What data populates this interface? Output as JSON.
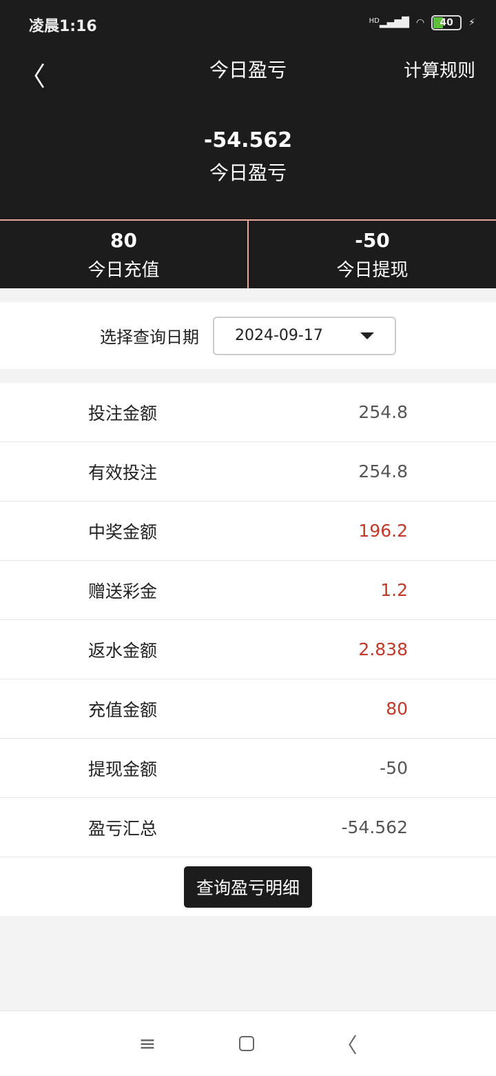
{
  "status_bar": {
    "time": "凌晨1:16",
    "signal": "HD",
    "battery": "40"
  },
  "header": {
    "title": "今日盈亏",
    "rules_label": "计算规则"
  },
  "summary": {
    "value": "-54.562",
    "label": "今日盈亏"
  },
  "stats": [
    {
      "value": "80",
      "label": "今日充值"
    },
    {
      "value": "-50",
      "label": "今日提现"
    }
  ],
  "date_query": {
    "label": "选择查询日期",
    "value": "2024-09-17"
  },
  "rows": [
    {
      "label": "投注金额",
      "value": "254.8",
      "color": "#555555"
    },
    {
      "label": "有效投注",
      "value": "254.8",
      "color": "#555555"
    },
    {
      "label": "中奖金额",
      "value": "196.2",
      "color": "#c0392b"
    },
    {
      "label": "赠送彩金",
      "value": "1.2",
      "color": "#c0392b"
    },
    {
      "label": "返水金额",
      "value": "2.838",
      "color": "#c0392b"
    },
    {
      "label": "充值金额",
      "value": "80",
      "color": "#c0392b"
    },
    {
      "label": "提现金额",
      "value": "-50",
      "color": "#555555"
    },
    {
      "label": "盈亏汇总",
      "value": "-54.562",
      "color": "#555555"
    }
  ],
  "detail_button": "查询盈亏明细",
  "accent": "#e8a49a"
}
